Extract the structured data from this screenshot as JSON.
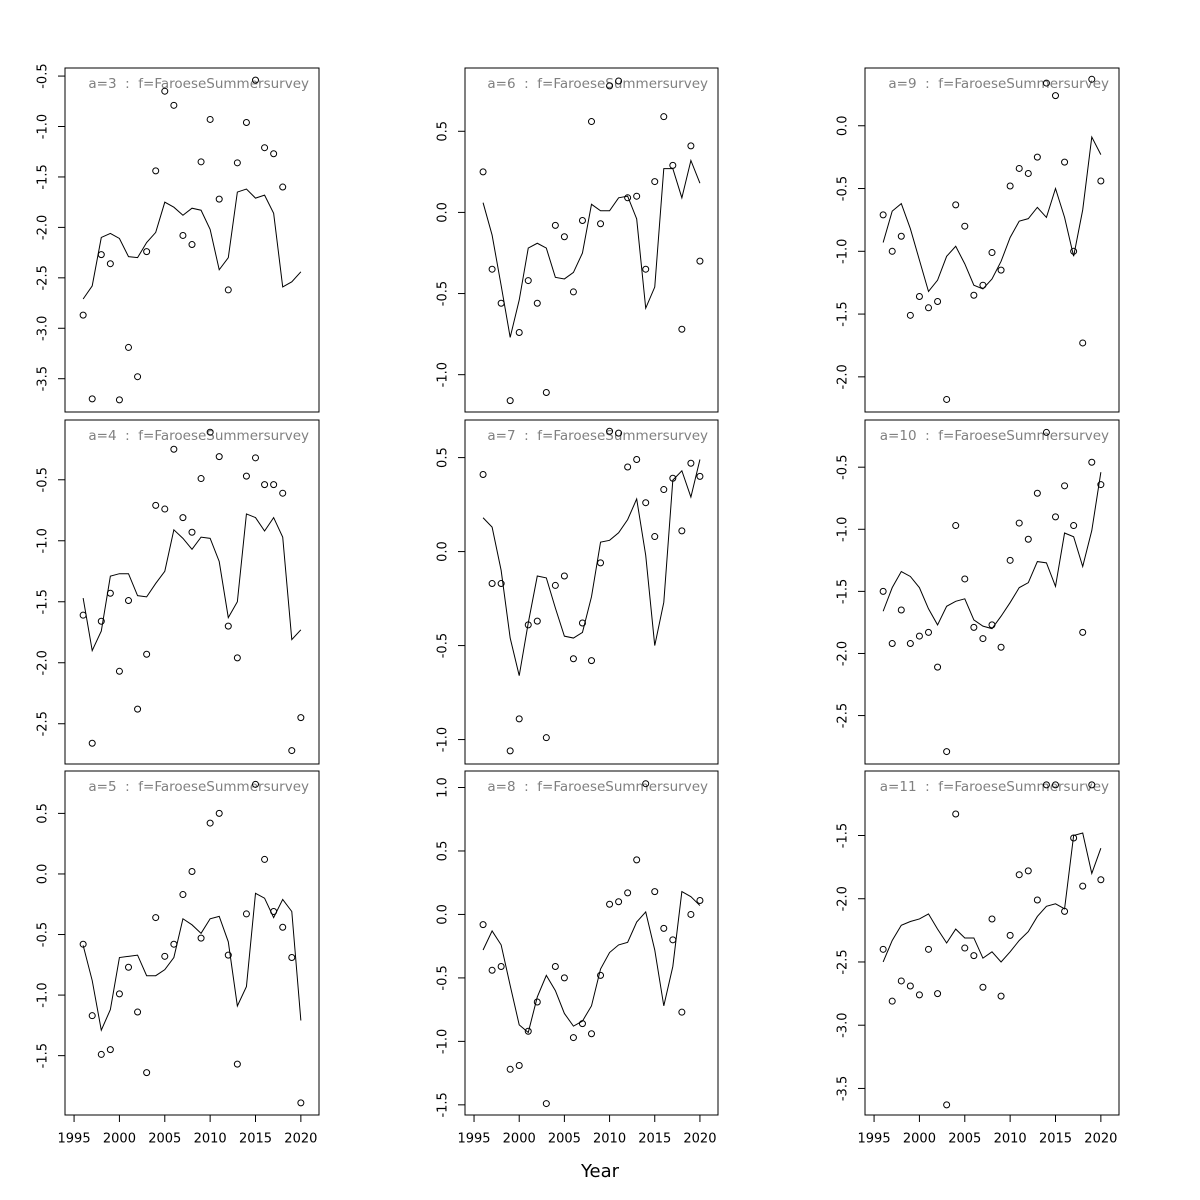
{
  "xlabel": "Year",
  "chart_data": [
    {
      "type": "scatter",
      "title": "a=3  :  f=FaroeseSummersurvey",
      "x": [
        1996,
        1997,
        1998,
        1999,
        2000,
        2001,
        2002,
        2003,
        2004,
        2005,
        2006,
        2007,
        2008,
        2009,
        2010,
        2011,
        2012,
        2013,
        2014,
        2015,
        2016,
        2017,
        2018,
        2019,
        2020
      ],
      "series": [
        {
          "style": "points",
          "values": [
            -2.87,
            -3.7,
            -2.27,
            -2.36,
            -3.71,
            -3.19,
            -3.48,
            -2.24,
            -1.44,
            -0.65,
            -0.79,
            -2.08,
            -2.17,
            -1.35,
            -0.93,
            -1.72,
            -2.62,
            -1.36,
            -0.96,
            -0.54,
            -1.21,
            -1.27,
            -1.6,
            null,
            null
          ]
        },
        {
          "style": "line",
          "values": [
            -2.71,
            -2.58,
            -2.1,
            -2.06,
            -2.11,
            -2.29,
            -2.3,
            -2.15,
            -2.05,
            -1.75,
            -1.8,
            -1.88,
            -1.81,
            -1.83,
            -2.02,
            -2.42,
            -2.3,
            -1.65,
            -1.62,
            -1.71,
            -1.68,
            -1.86,
            -2.59,
            -2.54,
            -2.44
          ]
        }
      ],
      "xlim": [
        1994,
        2022
      ],
      "ylim": [
        -3.83,
        -0.42
      ],
      "yticks": [
        -0.5,
        {
          "value": -1,
          "label": "-1.0"
        },
        -1.5,
        {
          "value": -2,
          "label": "-2.0"
        },
        -2.5,
        {
          "value": -3,
          "label": "-3.0"
        },
        -3.5
      ]
    },
    {
      "type": "scatter",
      "title": "a=4  :  f=FaroeseSummersurvey",
      "x": [
        1996,
        1997,
        1998,
        1999,
        2000,
        2001,
        2002,
        2003,
        2004,
        2005,
        2006,
        2007,
        2008,
        2009,
        2010,
        2011,
        2012,
        2013,
        2014,
        2015,
        2016,
        2017,
        2018,
        2019,
        2020
      ],
      "series": [
        {
          "style": "points",
          "values": [
            -1.61,
            -2.66,
            -1.66,
            -1.43,
            -2.07,
            -1.49,
            -2.38,
            -1.93,
            -0.71,
            -0.74,
            -0.25,
            -0.81,
            -0.93,
            -0.49,
            -0.11,
            -0.31,
            -1.7,
            -1.96,
            -0.47,
            -0.32,
            -0.54,
            -0.54,
            -0.61,
            -2.72,
            -2.45
          ]
        },
        {
          "style": "line",
          "values": [
            -1.47,
            -1.9,
            -1.74,
            -1.29,
            -1.27,
            -1.27,
            -1.45,
            -1.46,
            -1.35,
            -1.25,
            -0.91,
            -0.98,
            -1.07,
            -0.97,
            -0.98,
            -1.17,
            -1.63,
            -1.5,
            -0.78,
            -0.81,
            -0.92,
            -0.81,
            -0.97,
            -1.81,
            -1.73
          ]
        }
      ],
      "xlim": [
        1994,
        2022
      ],
      "ylim": [
        -2.83,
        -0.01
      ],
      "yticks": [
        -0.5,
        {
          "value": -1,
          "label": "-1.0"
        },
        -1.5,
        {
          "value": -2,
          "label": "-2.0"
        },
        -2.5
      ]
    },
    {
      "type": "scatter",
      "title": "a=5  :  f=FaroeseSummersurvey",
      "x": [
        1996,
        1997,
        1998,
        1999,
        2000,
        2001,
        2002,
        2003,
        2004,
        2005,
        2006,
        2007,
        2008,
        2009,
        2010,
        2011,
        2012,
        2013,
        2014,
        2015,
        2016,
        2017,
        2018,
        2019,
        2020
      ],
      "series": [
        {
          "style": "points",
          "values": [
            -0.58,
            -1.17,
            -1.49,
            -1.45,
            -0.99,
            -0.77,
            -1.14,
            -1.64,
            -0.36,
            -0.68,
            -0.58,
            -0.17,
            0.02,
            -0.53,
            0.42,
            0.5,
            -0.67,
            -1.57,
            -0.33,
            0.74,
            0.12,
            -0.31,
            -0.44,
            -0.69,
            -1.89
          ]
        },
        {
          "style": "line",
          "values": [
            -0.59,
            -0.88,
            -1.29,
            -1.12,
            -0.69,
            -0.68,
            -0.67,
            -0.84,
            -0.84,
            -0.79,
            -0.69,
            -0.37,
            -0.42,
            -0.49,
            -0.37,
            -0.35,
            -0.56,
            -1.09,
            -0.93,
            -0.16,
            -0.2,
            -0.36,
            -0.21,
            -0.31,
            -1.21
          ]
        }
      ],
      "xlim": [
        1994,
        2022
      ],
      "ylim": [
        -1.99,
        0.85
      ],
      "yticks": [
        0.5,
        {
          "value": 0,
          "label": "0.0"
        },
        -0.5,
        {
          "value": -1,
          "label": "-1.0"
        },
        -1.5
      ],
      "xticks": [
        1995,
        2000,
        2005,
        2010,
        2015,
        2020
      ]
    },
    {
      "type": "scatter",
      "title": "a=6  :  f=FaroeseSummersurvey",
      "x": [
        1996,
        1997,
        1998,
        1999,
        2000,
        2001,
        2002,
        2003,
        2004,
        2005,
        2006,
        2007,
        2008,
        2009,
        2010,
        2011,
        2012,
        2013,
        2014,
        2015,
        2016,
        2017,
        2018,
        2019,
        2020
      ],
      "series": [
        {
          "style": "points",
          "values": [
            0.25,
            -0.35,
            -0.56,
            -1.16,
            -0.74,
            -0.42,
            -0.56,
            -1.11,
            -0.08,
            -0.15,
            -0.49,
            -0.05,
            0.56,
            -0.07,
            0.78,
            0.81,
            0.09,
            0.1,
            -0.35,
            0.19,
            0.59,
            0.29,
            -0.72,
            0.41,
            -0.3
          ]
        },
        {
          "style": "line",
          "values": [
            0.06,
            -0.14,
            -0.45,
            -0.77,
            -0.54,
            -0.22,
            -0.19,
            -0.22,
            -0.4,
            -0.41,
            -0.37,
            -0.25,
            0.05,
            0.01,
            0.01,
            0.09,
            0.1,
            -0.04,
            -0.59,
            -0.46,
            0.27,
            0.27,
            0.09,
            0.32,
            0.18
          ]
        }
      ],
      "xlim": [
        1994,
        2022
      ],
      "ylim": [
        -1.23,
        0.89
      ],
      "yticks": [
        0.5,
        {
          "value": 0,
          "label": "0.0"
        },
        -0.5,
        {
          "value": -1,
          "label": "-1.0"
        }
      ]
    },
    {
      "type": "scatter",
      "title": "a=7  :  f=FaroeseSummersurvey",
      "x": [
        1996,
        1997,
        1998,
        1999,
        2000,
        2001,
        2002,
        2003,
        2004,
        2005,
        2006,
        2007,
        2008,
        2009,
        2010,
        2011,
        2012,
        2013,
        2014,
        2015,
        2016,
        2017,
        2018,
        2019,
        2020
      ],
      "series": [
        {
          "style": "points",
          "values": [
            0.41,
            -0.17,
            -0.17,
            -1.06,
            -0.89,
            -0.39,
            -0.37,
            -0.99,
            -0.18,
            -0.13,
            -0.57,
            -0.38,
            -0.58,
            -0.06,
            0.64,
            0.63,
            0.45,
            0.49,
            0.26,
            0.08,
            0.33,
            0.39,
            0.11,
            0.47,
            0.4
          ]
        },
        {
          "style": "line",
          "values": [
            0.18,
            0.13,
            -0.1,
            -0.46,
            -0.66,
            -0.38,
            -0.13,
            -0.14,
            -0.3,
            -0.45,
            -0.46,
            -0.43,
            -0.24,
            0.05,
            0.06,
            0.1,
            0.17,
            0.28,
            -0.02,
            -0.5,
            -0.27,
            0.38,
            0.43,
            0.29,
            0.49
          ]
        }
      ],
      "xlim": [
        1994,
        2022
      ],
      "ylim": [
        -1.13,
        0.7
      ],
      "yticks": [
        0.5,
        {
          "value": 0,
          "label": "0.0"
        },
        -0.5,
        {
          "value": -1,
          "label": "-1.0"
        }
      ]
    },
    {
      "type": "scatter",
      "title": "a=8  :  f=FaroeseSummersurvey",
      "x": [
        1996,
        1997,
        1998,
        1999,
        2000,
        2001,
        2002,
        2003,
        2004,
        2005,
        2006,
        2007,
        2008,
        2009,
        2010,
        2011,
        2012,
        2013,
        2014,
        2015,
        2016,
        2017,
        2018,
        2019,
        2020
      ],
      "series": [
        {
          "style": "points",
          "values": [
            -0.08,
            -0.44,
            -0.41,
            -1.22,
            -1.19,
            -0.92,
            -0.69,
            -1.49,
            -0.41,
            -0.5,
            -0.97,
            -0.86,
            -0.94,
            -0.48,
            0.08,
            0.1,
            0.17,
            0.43,
            1.03,
            0.18,
            -0.11,
            -0.2,
            -0.77,
            0.0,
            0.11
          ]
        },
        {
          "style": "line",
          "values": [
            -0.28,
            -0.13,
            -0.24,
            -0.56,
            -0.87,
            -0.93,
            -0.65,
            -0.48,
            -0.6,
            -0.78,
            -0.88,
            -0.84,
            -0.72,
            -0.43,
            -0.3,
            -0.24,
            -0.22,
            -0.06,
            0.02,
            -0.28,
            -0.72,
            -0.41,
            0.18,
            0.14,
            0.07
          ]
        }
      ],
      "xlim": [
        1994,
        2022
      ],
      "ylim": [
        -1.58,
        1.13
      ],
      "yticks": [
        {
          "value": 1,
          "label": "1.0"
        },
        0.5,
        {
          "value": 0,
          "label": "0.0"
        },
        -0.5,
        {
          "value": -1,
          "label": "-1.0"
        },
        -1.5
      ],
      "xticks": [
        1995,
        2000,
        2005,
        2010,
        2015,
        2020
      ]
    },
    {
      "type": "scatter",
      "title": "a=9  :  f=FaroeseSummersurvey",
      "x": [
        1996,
        1997,
        1998,
        1999,
        2000,
        2001,
        2002,
        2003,
        2004,
        2005,
        2006,
        2007,
        2008,
        2009,
        2010,
        2011,
        2012,
        2013,
        2014,
        2015,
        2016,
        2017,
        2018,
        2019,
        2020
      ],
      "series": [
        {
          "style": "points",
          "values": [
            -0.71,
            -1.0,
            -0.88,
            -1.51,
            -1.36,
            -1.45,
            -1.4,
            -2.18,
            -0.63,
            -0.8,
            -1.35,
            -1.27,
            -1.01,
            -1.15,
            -0.48,
            -0.34,
            -0.38,
            -0.25,
            0.34,
            0.24,
            -0.29,
            -1.0,
            -1.73,
            0.37,
            -0.44
          ]
        },
        {
          "style": "line",
          "values": [
            -0.93,
            -0.68,
            -0.62,
            -0.82,
            -1.07,
            -1.32,
            -1.23,
            -1.04,
            -0.96,
            -1.1,
            -1.27,
            -1.3,
            -1.22,
            -1.08,
            -0.89,
            -0.76,
            -0.74,
            -0.65,
            -0.73,
            -0.5,
            -0.73,
            -1.04,
            -0.67,
            -0.09,
            -0.23
          ]
        }
      ],
      "xlim": [
        1994,
        2022
      ],
      "ylim": [
        -2.28,
        0.46
      ],
      "yticks": [
        {
          "value": 0,
          "label": "0.0"
        },
        -0.5,
        {
          "value": -1,
          "label": "-1.0"
        },
        -1.5,
        {
          "value": -2,
          "label": "-2.0"
        }
      ]
    },
    {
      "type": "scatter",
      "title": "a=10  :  f=FaroeseSummersurvey",
      "x": [
        1996,
        1997,
        1998,
        1999,
        2000,
        2001,
        2002,
        2003,
        2004,
        2005,
        2006,
        2007,
        2008,
        2009,
        2010,
        2011,
        2012,
        2013,
        2014,
        2015,
        2016,
        2017,
        2018,
        2019,
        2020
      ],
      "series": [
        {
          "style": "points",
          "values": [
            -1.5,
            -1.92,
            -1.65,
            -1.92,
            -1.86,
            -1.83,
            -2.11,
            -2.79,
            -0.97,
            -1.4,
            -1.79,
            -1.88,
            -1.77,
            -1.95,
            -1.25,
            -0.95,
            -1.08,
            -0.71,
            -0.22,
            -0.9,
            -0.65,
            -0.97,
            -1.83,
            -0.46,
            -0.64
          ]
        },
        {
          "style": "line",
          "values": [
            -1.66,
            -1.47,
            -1.34,
            -1.38,
            -1.47,
            -1.64,
            -1.77,
            -1.62,
            -1.58,
            -1.56,
            -1.73,
            -1.78,
            -1.8,
            -1.7,
            -1.59,
            -1.47,
            -1.43,
            -1.26,
            -1.27,
            -1.46,
            -1.03,
            -1.06,
            -1.3,
            -1.01,
            -0.54
          ]
        }
      ],
      "xlim": [
        1994,
        2022
      ],
      "ylim": [
        -2.89,
        -0.12
      ],
      "yticks": [
        -0.5,
        {
          "value": -1,
          "label": "-1.0"
        },
        -1.5,
        {
          "value": -2,
          "label": "-2.0"
        },
        -2.5
      ]
    },
    {
      "type": "scatter",
      "title": "a=11  :  f=FaroeseSummersurvey",
      "x": [
        1996,
        1997,
        1998,
        1999,
        2000,
        2001,
        2002,
        2003,
        2004,
        2005,
        2006,
        2007,
        2008,
        2009,
        2010,
        2011,
        2012,
        2013,
        2014,
        2015,
        2016,
        2017,
        2018,
        2019,
        2020
      ],
      "series": [
        {
          "style": "points",
          "values": [
            -2.4,
            -2.81,
            -2.65,
            -2.69,
            -2.76,
            -2.4,
            -2.75,
            -3.63,
            -1.33,
            -2.39,
            -2.45,
            -2.7,
            -2.16,
            -2.77,
            -2.29,
            -1.81,
            -1.78,
            -2.01,
            -1.1,
            -1.1,
            -2.1,
            -1.52,
            -1.9,
            -1.1,
            -1.85
          ]
        },
        {
          "style": "line",
          "values": [
            -2.5,
            -2.33,
            -2.21,
            -2.18,
            -2.16,
            -2.12,
            -2.24,
            -2.35,
            -2.24,
            -2.31,
            -2.31,
            -2.47,
            -2.42,
            -2.5,
            -2.42,
            -2.33,
            -2.26,
            -2.14,
            -2.06,
            -2.04,
            -2.08,
            -1.5,
            -1.48,
            -1.8,
            -1.6
          ]
        }
      ],
      "xlim": [
        1994,
        2022
      ],
      "ylim": [
        -3.71,
        -0.99
      ],
      "yticks": [
        -1.5,
        {
          "value": -2,
          "label": "-2.0"
        },
        -2.5,
        {
          "value": -3,
          "label": "-3.0"
        },
        -3.5
      ],
      "xticks": [
        1995,
        2000,
        2005,
        2010,
        2015,
        2020
      ]
    }
  ]
}
